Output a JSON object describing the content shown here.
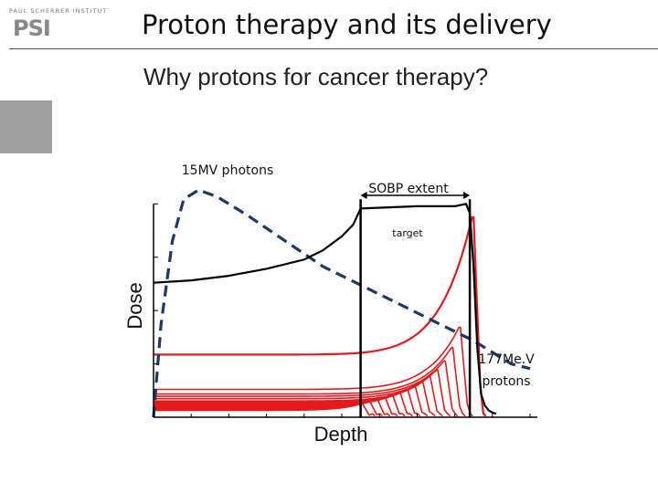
{
  "header": {
    "logo_small": "PAUL SCHERRER INSTITUT",
    "logo_big": "PSI",
    "title": "Proton therapy and its delivery",
    "subtitle": "Why protons for cancer therapy?"
  },
  "chart_data": {
    "type": "line",
    "title": "",
    "xlabel": "Depth",
    "ylabel": "Dose",
    "annotations": {
      "photons": "15MV photons",
      "sobp": "SOBP extent",
      "target": "target",
      "protons_line1": "177Me.V",
      "protons_line2": "protons"
    },
    "xlim": [
      0,
      100
    ],
    "ylim": [
      0,
      100
    ],
    "target_region": [
      55,
      84
    ],
    "series": [
      {
        "color": "#1f3864",
        "style": "dashed",
        "x": [
          0,
          2,
          5,
          8,
          12,
          17,
          25,
          35,
          45,
          55,
          65,
          75,
          85,
          95,
          100
        ],
        "y": [
          0,
          40,
          76,
          94,
          98,
          95,
          87,
          76,
          65,
          57,
          49,
          41,
          33,
          23,
          21
        ]
      },
      {
        "color": "#000000",
        "style": "solid",
        "x": [
          0,
          10,
          20,
          30,
          40,
          45,
          50,
          53,
          55,
          70,
          80,
          83,
          84,
          85,
          86,
          87,
          88,
          89,
          90,
          91
        ],
        "y": [
          58,
          59,
          61,
          64,
          68,
          72,
          78,
          83,
          90,
          91,
          91,
          92,
          88,
          65,
          30,
          10,
          5,
          3,
          2,
          1.5
        ]
      }
    ],
    "pristine_peaks": [
      {
        "range": 85.0,
        "entrance": 27,
        "peak": 89
      },
      {
        "range": 81.5,
        "entrance": 12,
        "peak": 40
      },
      {
        "range": 79.5,
        "entrance": 10,
        "peak": 31
      },
      {
        "range": 77.5,
        "entrance": 9,
        "peak": 25
      },
      {
        "range": 75.5,
        "entrance": 8,
        "peak": 21
      },
      {
        "range": 73.5,
        "entrance": 7,
        "peak": 18
      },
      {
        "range": 71.5,
        "entrance": 6.5,
        "peak": 16
      },
      {
        "range": 69.5,
        "entrance": 6,
        "peak": 14
      },
      {
        "range": 67.5,
        "entrance": 5.5,
        "peak": 12.5
      },
      {
        "range": 65.5,
        "entrance": 5,
        "peak": 11
      },
      {
        "range": 63.5,
        "entrance": 4.6,
        "peak": 10
      },
      {
        "range": 61.5,
        "entrance": 4.2,
        "peak": 9
      },
      {
        "range": 59.5,
        "entrance": 3.8,
        "peak": 8
      },
      {
        "range": 57.5,
        "entrance": 3.4,
        "peak": 7
      },
      {
        "range": 55.5,
        "entrance": 3,
        "peak": 6
      }
    ],
    "grid": false
  }
}
